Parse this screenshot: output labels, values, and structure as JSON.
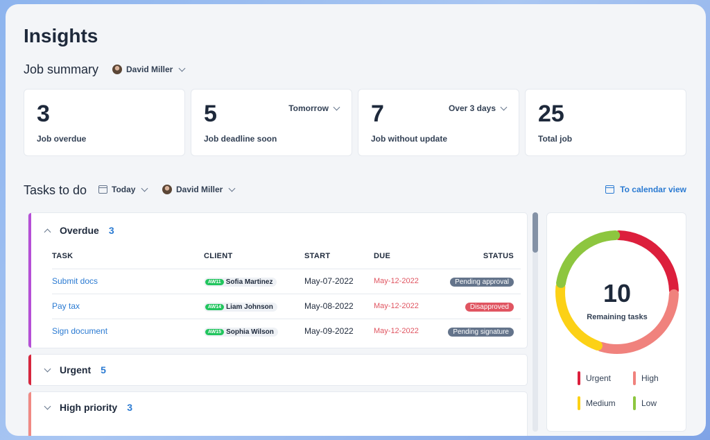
{
  "page": {
    "title": "Insights"
  },
  "job_summary": {
    "title": "Job summary",
    "user": "David Miller",
    "cards": [
      {
        "value": "3",
        "label": "Job overdue"
      },
      {
        "value": "5",
        "label": "Job deadline soon",
        "select": "Tomorrow"
      },
      {
        "value": "7",
        "label": "Job without update",
        "select": "Over 3 days"
      },
      {
        "value": "25",
        "label": "Total job"
      }
    ]
  },
  "tasks": {
    "title": "Tasks to do",
    "date_filter": "Today",
    "user_filter": "David Miller",
    "calendar_link": "To calendar view",
    "columns": [
      "TASK",
      "CLIENT",
      "START",
      "DUE",
      "STATUS"
    ],
    "groups": [
      {
        "name": "Overdue",
        "count": "3",
        "color": "#b54fd6",
        "rows": [
          {
            "task": "Submit docs",
            "client_code": "AW11",
            "client": "Sofia Martinez",
            "start": "May-07-2022",
            "due": "May-12-2022",
            "status": "Pending approval",
            "status_color": "#64748b"
          },
          {
            "task": "Pay tax",
            "client_code": "AW14",
            "client": "Liam Johnson",
            "start": "May-08-2022",
            "due": "May-12-2022",
            "status": "Disapproved",
            "status_color": "#e05561"
          },
          {
            "task": "Sign document",
            "client_code": "AW15",
            "client": "Sophia Wilson",
            "start": "May-09-2022",
            "due": "May-12-2022",
            "status": "Pending signature",
            "status_color": "#64748b"
          }
        ]
      },
      {
        "name": "Urgent",
        "count": "5",
        "color": "#d7263d"
      },
      {
        "name": "High priority",
        "count": "3",
        "color": "#f08a84"
      }
    ]
  },
  "remaining": {
    "value": "10",
    "label": "Remaining tasks",
    "segments": [
      {
        "name": "Urgent",
        "color": "#dc1f3c",
        "fraction": 0.25
      },
      {
        "name": "High",
        "color": "#f0827d",
        "fraction": 0.3
      },
      {
        "name": "Medium",
        "color": "#fcd116",
        "fraction": 0.22
      },
      {
        "name": "Low",
        "color": "#8dc63f",
        "fraction": 0.23
      }
    ]
  }
}
